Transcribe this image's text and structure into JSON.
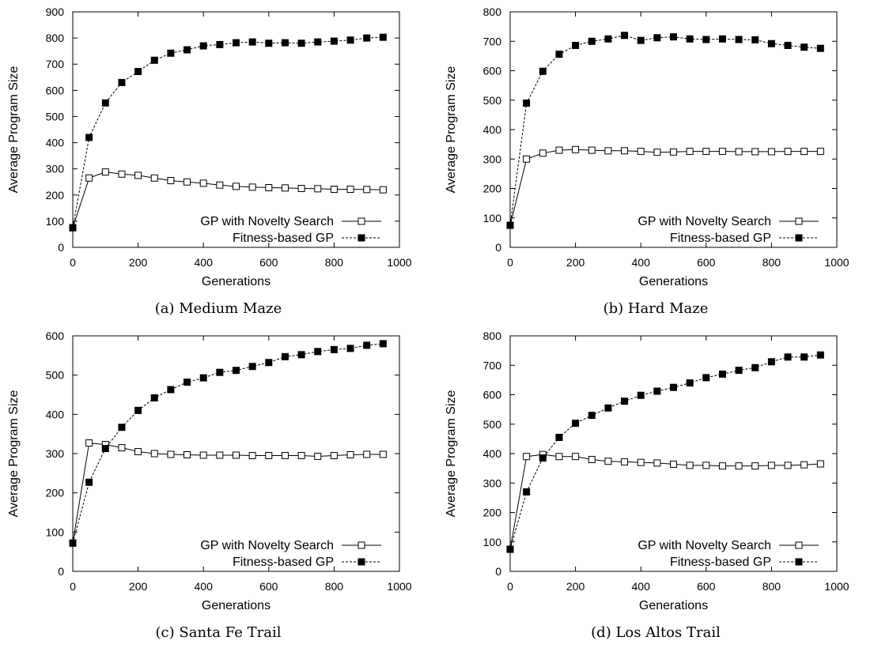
{
  "chart_data": [
    {
      "type": "line",
      "caption": "(a) Medium Maze",
      "xlabel": "Generations",
      "ylabel": "Average Program Size",
      "xlim": [
        0,
        1000
      ],
      "ylim": [
        0,
        900
      ],
      "xticks": [
        0,
        200,
        400,
        600,
        800,
        1000
      ],
      "yticks": [
        0,
        100,
        200,
        300,
        400,
        500,
        600,
        700,
        800,
        900
      ],
      "legend": "bottom-right",
      "x": [
        0,
        50,
        100,
        150,
        200,
        250,
        300,
        350,
        400,
        450,
        500,
        550,
        600,
        650,
        700,
        750,
        800,
        850,
        900,
        950
      ],
      "series": [
        {
          "name": "GP with Novelty Search",
          "style": "solid-open-square",
          "values": [
            75,
            265,
            288,
            280,
            275,
            265,
            255,
            250,
            245,
            238,
            233,
            230,
            228,
            227,
            225,
            224,
            222,
            222,
            221,
            220
          ]
        },
        {
          "name": "Fitness-based GP",
          "style": "dashed-filled-square",
          "values": [
            75,
            420,
            552,
            630,
            672,
            715,
            742,
            755,
            770,
            775,
            782,
            785,
            780,
            782,
            780,
            785,
            788,
            792,
            800,
            803
          ]
        }
      ]
    },
    {
      "type": "line",
      "caption": "(b) Hard Maze",
      "xlabel": "Generations",
      "ylabel": "Average Program Size",
      "xlim": [
        0,
        1000
      ],
      "ylim": [
        0,
        800
      ],
      "xticks": [
        0,
        200,
        400,
        600,
        800,
        1000
      ],
      "yticks": [
        0,
        100,
        200,
        300,
        400,
        500,
        600,
        700,
        800
      ],
      "legend": "bottom-right",
      "x": [
        0,
        50,
        100,
        150,
        200,
        250,
        300,
        350,
        400,
        450,
        500,
        550,
        600,
        650,
        700,
        750,
        800,
        850,
        900,
        950
      ],
      "series": [
        {
          "name": "GP with Novelty Search",
          "style": "solid-open-square",
          "values": [
            75,
            300,
            320,
            330,
            332,
            330,
            328,
            328,
            326,
            323,
            324,
            326,
            326,
            326,
            325,
            325,
            325,
            326,
            326,
            326
          ]
        },
        {
          "name": "Fitness-based GP",
          "style": "dashed-filled-square",
          "values": [
            75,
            490,
            598,
            656,
            686,
            700,
            708,
            720,
            703,
            712,
            715,
            708,
            706,
            708,
            706,
            705,
            692,
            686,
            680,
            676
          ]
        }
      ]
    },
    {
      "type": "line",
      "caption": "(c) Santa Fe Trail",
      "xlabel": "Generations",
      "ylabel": "Average Program Size",
      "xlim": [
        0,
        1000
      ],
      "ylim": [
        0,
        600
      ],
      "xticks": [
        0,
        200,
        400,
        600,
        800,
        1000
      ],
      "yticks": [
        0,
        100,
        200,
        300,
        400,
        500,
        600
      ],
      "legend": "bottom-right",
      "x": [
        0,
        50,
        100,
        150,
        200,
        250,
        300,
        350,
        400,
        450,
        500,
        550,
        600,
        650,
        700,
        750,
        800,
        850,
        900,
        950
      ],
      "series": [
        {
          "name": "GP with Novelty Search",
          "style": "solid-open-square",
          "values": [
            72,
            327,
            323,
            315,
            305,
            300,
            298,
            297,
            296,
            296,
            296,
            295,
            295,
            295,
            295,
            293,
            295,
            297,
            298,
            298
          ]
        },
        {
          "name": "Fitness-based GP",
          "style": "dashed-filled-square",
          "values": [
            72,
            227,
            313,
            367,
            410,
            442,
            463,
            482,
            493,
            507,
            512,
            522,
            532,
            547,
            552,
            560,
            565,
            568,
            576,
            580
          ]
        }
      ]
    },
    {
      "type": "line",
      "caption": "(d) Los Altos Trail",
      "xlabel": "Generations",
      "ylabel": "Average Program Size",
      "xlim": [
        0,
        1000
      ],
      "ylim": [
        0,
        800
      ],
      "xticks": [
        0,
        200,
        400,
        600,
        800,
        1000
      ],
      "yticks": [
        0,
        100,
        200,
        300,
        400,
        500,
        600,
        700,
        800
      ],
      "legend": "bottom-right",
      "x": [
        0,
        50,
        100,
        150,
        200,
        250,
        300,
        350,
        400,
        450,
        500,
        550,
        600,
        650,
        700,
        750,
        800,
        850,
        900,
        950
      ],
      "series": [
        {
          "name": "GP with Novelty Search",
          "style": "solid-open-square",
          "values": [
            75,
            390,
            397,
            390,
            390,
            380,
            374,
            372,
            370,
            368,
            364,
            360,
            360,
            358,
            358,
            358,
            360,
            360,
            362,
            365
          ]
        },
        {
          "name": "Fitness-based GP",
          "style": "dashed-filled-square",
          "values": [
            75,
            270,
            385,
            455,
            503,
            530,
            555,
            578,
            598,
            612,
            625,
            640,
            658,
            670,
            683,
            692,
            712,
            728,
            728,
            735
          ]
        }
      ]
    }
  ]
}
